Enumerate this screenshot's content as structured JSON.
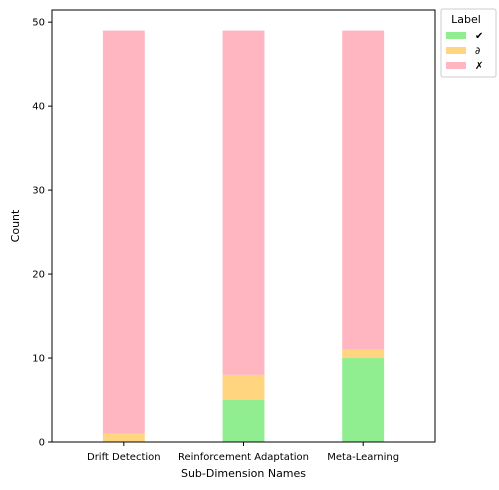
{
  "chart_data": {
    "type": "bar",
    "stacked": true,
    "categories": [
      "Drift Detection",
      "Reinforcement Adaptation",
      "Meta-Learning"
    ],
    "series": [
      {
        "name": "✔",
        "color": "#90ee90",
        "values": [
          0,
          5,
          10
        ]
      },
      {
        "name": "∂",
        "color": "#ffd580",
        "values": [
          1,
          3,
          1
        ]
      },
      {
        "name": "✗",
        "color": "#ffb6c1",
        "values": [
          48,
          41,
          38
        ]
      }
    ],
    "title": "",
    "xlabel": "Sub-Dimension Names",
    "ylabel": "Count",
    "ylim": [
      0,
      51.45
    ],
    "yticks": [
      0,
      10,
      20,
      30,
      40,
      50
    ],
    "grid": false,
    "legend": {
      "title": "Label",
      "placement": "outside-top-right"
    }
  }
}
